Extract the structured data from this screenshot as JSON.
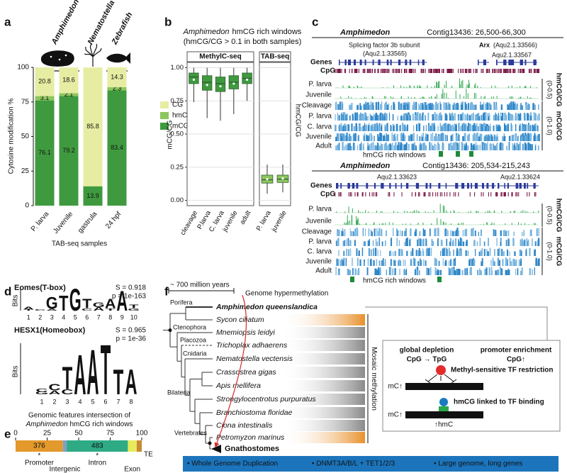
{
  "chart_data": [
    {
      "type": "stacked-bar",
      "panel": "a",
      "groups": [
        "Amphimedon",
        "Nematostella",
        "Zebrafish"
      ],
      "categories": [
        "P. larva",
        "Juvenile",
        "gastrula",
        "24 hpf"
      ],
      "series": [
        {
          "name": "mCG",
          "color": "#3f9a3f",
          "values": [
            76.1,
            79.2,
            13.9,
            83.4
          ]
        },
        {
          "name": "hmCG",
          "color": "#8dc65e",
          "values": [
            3.1,
            2.1,
            0.2,
            2.3
          ]
        },
        {
          "name": "CG",
          "color": "#e6eda3",
          "values": [
            20.8,
            18.6,
            85.8,
            14.3
          ]
        }
      ],
      "ylim": [
        0,
        100
      ],
      "yticks": [
        0,
        25,
        50,
        75,
        100
      ],
      "y_label": "Cytosine modification %",
      "x_label": "TAB-seq samples"
    },
    {
      "type": "box",
      "panel": "b",
      "title_species": "Amphimedon",
      "title": "hmCG rich windows",
      "subtitle": "(hmCG/CG > 0.1 in both samples)",
      "ylim": [
        -0.04,
        1.04
      ],
      "yticks": [
        {
          "value": 0,
          "label": "0.00"
        },
        {
          "value": 0.25,
          "label": "0.25"
        },
        {
          "value": 0.5,
          "label": "0.50"
        },
        {
          "value": 0.75,
          "label": "0.75"
        },
        {
          "value": 1,
          "label": "1.00"
        }
      ],
      "grid": true,
      "facets": [
        {
          "name": "MethylC-seq",
          "y_label": "mCG/CG",
          "color": "#3f9a3f",
          "categories": [
            "cleavage",
            "P.larva",
            "C. larva",
            "juvenile",
            "adult"
          ],
          "boxes": [
            {
              "low": 0.74,
              "q1": 0.88,
              "median": 0.93,
              "q3": 0.96,
              "high": 1.0,
              "mean": 0.91
            },
            {
              "low": 0.62,
              "q1": 0.83,
              "median": 0.89,
              "q3": 0.94,
              "high": 1.0,
              "mean": 0.87
            },
            {
              "low": 0.6,
              "q1": 0.82,
              "median": 0.88,
              "q3": 0.93,
              "high": 1.0,
              "mean": 0.86
            },
            {
              "low": 0.65,
              "q1": 0.84,
              "median": 0.89,
              "q3": 0.94,
              "high": 1.0,
              "mean": 0.88
            },
            {
              "low": 0.75,
              "q1": 0.88,
              "median": 0.92,
              "q3": 0.96,
              "high": 1.0,
              "mean": 0.91
            }
          ]
        },
        {
          "name": "TAB-seq",
          "y_label": "hmCG/CG",
          "color": "#8dc65e",
          "categories": [
            "P. larva",
            "juvenile"
          ],
          "boxes": [
            {
              "low": 0.05,
              "q1": 0.13,
              "median": 0.155,
              "q3": 0.19,
              "high": 0.27,
              "mean": 0.16
            },
            {
              "low": 0.06,
              "q1": 0.135,
              "median": 0.16,
              "q3": 0.19,
              "high": 0.27,
              "mean": 0.165
            }
          ]
        }
      ]
    },
    {
      "type": "stacked-hbar",
      "panel": "e",
      "title": "Genomic features intersection of",
      "title_species": "Amphimedon",
      "title_rest": "hmCG rich windows",
      "categories": [
        "Promoter",
        "Intergenic",
        "Intron",
        "Exon",
        "TE"
      ],
      "values": [
        37.5,
        3,
        48.5,
        7,
        4
      ],
      "colors": [
        "#e3992c",
        "#7f9fc6",
        "#2eaa84",
        "#e8ea5c",
        "#c98a34"
      ],
      "counts": {
        "Promoter": 376,
        "Intron": 483
      },
      "significance": {
        "Promoter": "*",
        "Intron": "*"
      },
      "xlim": [
        0,
        100
      ],
      "xticks": [
        0,
        25,
        50,
        75,
        100
      ]
    }
  ],
  "panel_c": {
    "panel": "c",
    "browsers": [
      {
        "species": "Amphimedon",
        "region": "Contig13436: 26,500-66,300",
        "genes_label": "Genes",
        "gene_labels": [
          "Splicing factor 3b subunit",
          "(Aqu2.1.33565)",
          "Arx",
          "(Aqu2.1.33566)",
          "Aqu2.1.33567"
        ],
        "cpg_label": "CpG",
        "hmc_samples": [
          "P. larva",
          "Juvenile"
        ],
        "hmc_track": "hmCG/CG",
        "hmc_scale": "(0-0.5)",
        "mc_samples": [
          "Cleavage",
          "P. larva",
          "C. larva",
          "Juvenile",
          "Adult"
        ],
        "mc_track": "mCG/CG",
        "mc_scale": "(0-1.0)",
        "windows_label": "hmCG rich windows"
      },
      {
        "species": "Amphimedon",
        "region": "Contig13436: 205,534-215,243",
        "genes_label": "Genes",
        "gene_labels": [
          "Aqu2.1.33623",
          "Aqu2.1.33624"
        ],
        "cpg_label": "CpG",
        "hmc_samples": [
          "P. larva",
          "Juvenile"
        ],
        "hmc_track": "hmCG/CG",
        "hmc_scale": "(0-0.5)",
        "mc_samples": [
          "Cleavage",
          "P. larva",
          "C. larva",
          "Juvenile",
          "Adult"
        ],
        "mc_track": "mCG/CG",
        "mc_scale": "(0-1.0)",
        "windows_label": "hmCG rich windows"
      }
    ]
  },
  "panel_d": {
    "panel": "d",
    "motifs": [
      {
        "name": "Eomes(T-box)",
        "score": "S = 0.918",
        "p_value": "p = 1e-163",
        "y_label": "Bits",
        "bits_lim": [
          0,
          2
        ],
        "positions": [
          1,
          2,
          3,
          4,
          5,
          6,
          7,
          8,
          9,
          10
        ],
        "stacks": [
          [
            {
              "letter": "T",
              "bits": 0.1
            },
            {
              "letter": "A",
              "bits": 0.25
            }
          ],
          [
            {
              "letter": "C",
              "bits": 0.1
            }
          ],
          [
            {
              "letter": "A",
              "bits": 0.15
            },
            {
              "letter": "G",
              "bits": 1.0
            }
          ],
          [
            {
              "letter": "T",
              "bits": 1.3
            }
          ],
          [
            {
              "letter": "G",
              "bits": 1.9
            }
          ],
          [
            {
              "letter": "C",
              "bits": 0.2
            },
            {
              "letter": "T",
              "bits": 0.8
            }
          ],
          [
            {
              "letter": "A",
              "bits": 0.3
            },
            {
              "letter": "G",
              "bits": 0.4
            }
          ],
          [
            {
              "letter": "T",
              "bits": 0.2
            },
            {
              "letter": "A",
              "bits": 0.8
            }
          ],
          [
            {
              "letter": "A",
              "bits": 1.7
            }
          ],
          [
            {
              "letter": "G",
              "bits": 0.2
            },
            {
              "letter": "T",
              "bits": 0.3
            }
          ]
        ]
      },
      {
        "name": "HESX1(Homeobox)",
        "score": "S = 0.965",
        "p_value": "p = 1e-36",
        "y_label": "Bits",
        "bits_lim": [
          0,
          2
        ],
        "positions": [
          1,
          2,
          3,
          4,
          5,
          6,
          7,
          8
        ],
        "stacks": [
          [
            {
              "letter": "G",
              "bits": 0.1
            },
            {
              "letter": "C",
              "bits": 0.12
            }
          ],
          [
            {
              "letter": "A",
              "bits": 0.15
            },
            {
              "letter": "C",
              "bits": 0.25
            }
          ],
          [
            {
              "letter": "C",
              "bits": 0.2
            },
            {
              "letter": "T",
              "bits": 0.9
            }
          ],
          [
            {
              "letter": "A",
              "bits": 1.6
            }
          ],
          [
            {
              "letter": "A",
              "bits": 1.8
            }
          ],
          [
            {
              "letter": "T",
              "bits": 2.0
            }
          ],
          [
            {
              "letter": "T",
              "bits": 1.0
            }
          ],
          [
            {
              "letter": "A",
              "bits": 1.0
            }
          ]
        ]
      }
    ]
  },
  "panel_f": {
    "panel": "f",
    "scale": "~ 700 million years",
    "event": "Genome hypermethylation",
    "species": [
      "Amphimedon queenslandica",
      "Sycon ciliatum",
      "Mnemiopsis leidyi",
      "Trichoplax adhaerens",
      "Nematostella vectensis",
      "Crassostrea gigas",
      "Apis mellifera",
      "Strongylocentrotus purpuratus",
      "Branchiostoma floridae",
      "Ciona intestinalis",
      "Petromyzon marinus",
      "Gnathostomes"
    ],
    "clades": [
      "Porifera",
      "Ctenophora",
      "Placozoa",
      "Cnidaria",
      "Bilateria",
      "Vertebrates"
    ],
    "mosaic": "Mosaic methylation",
    "model": {
      "left_title": "global depletion",
      "left_sub": "CpG → TpG",
      "right_title": "promoter enrichment",
      "right_sub": "CpG↑",
      "restriction": "Methyl-sensitive TF restriction",
      "binding": "hmCG linked to TF binding",
      "mc": "mC↑",
      "mc2": "mC↑",
      "hmc": "↑hmC"
    },
    "features": [
      "• Whole Genome Duplication",
      "• DNMT3A/B/L + TET1/2/3",
      "• Large genome, long genes"
    ]
  }
}
